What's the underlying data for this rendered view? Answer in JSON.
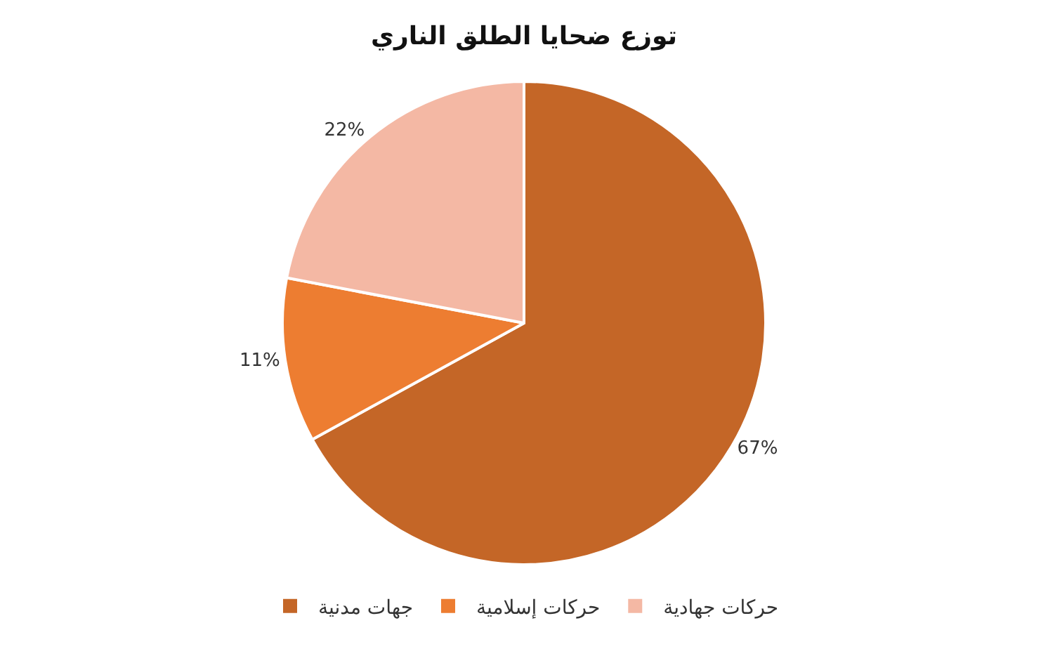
{
  "chart_data": {
    "type": "pie",
    "title": "توزع ضحايا الطلق الناري",
    "categories": [
      "جهات مدنية",
      "حركات إسلامية",
      "حركات جهادية"
    ],
    "values": [
      67,
      11,
      22
    ],
    "colors": [
      "#c46627",
      "#ed7d31",
      "#f4b8a4"
    ],
    "value_labels": [
      "67%",
      "11%",
      "22%"
    ],
    "legend": "bottom"
  }
}
